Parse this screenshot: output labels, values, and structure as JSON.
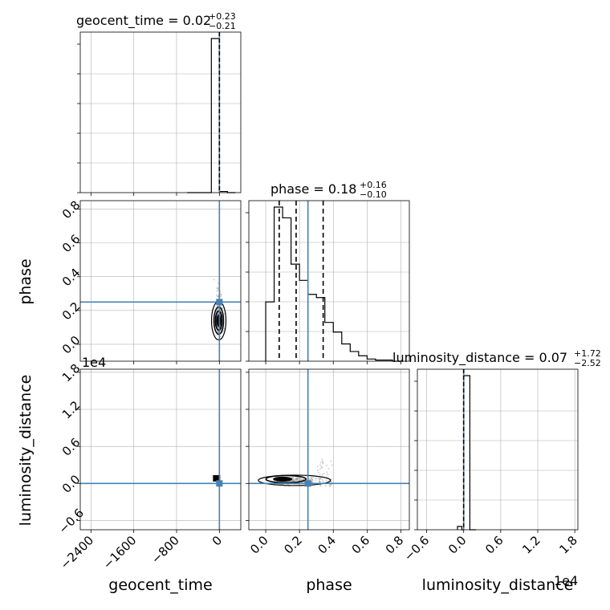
{
  "chart_data": {
    "type": "corner",
    "title": "",
    "parameters": [
      "geocent_time",
      "phase",
      "luminosity_distance"
    ],
    "panel_titles": {
      "geocent_time": {
        "prefix": "geocent_time = 0.02",
        "sup": "+0.23",
        "sub": "−0.21"
      },
      "phase": {
        "prefix": "phase = 0.18",
        "sup": "+0.16",
        "sub": "−0.10"
      },
      "luminosity_distance": {
        "prefix": "luminosity_distance = 0.07",
        "sup": "+1.72",
        "sub": "−2.52"
      }
    },
    "axis_labels": {
      "x": [
        "geocent_time",
        "phase",
        "luminosity_distance"
      ],
      "y": [
        "phase",
        "luminosity_distance"
      ]
    },
    "ticks": {
      "geocent_time": [
        -2400,
        -1600,
        -800,
        0
      ],
      "phase": [
        0.0,
        0.2,
        0.4,
        0.6,
        0.8
      ],
      "luminosity_distance": [
        -0.6,
        0.0,
        0.6,
        1.2,
        1.8
      ]
    },
    "tick_labels": {
      "geocent_time": [
        "−2400",
        "−1600",
        "−800",
        "0"
      ],
      "phase": [
        "0.0",
        "0.2",
        "0.4",
        "0.6",
        "0.8"
      ],
      "luminosity_distance": [
        "−0.6",
        "0.0",
        "0.6",
        "1.2",
        "1.8"
      ]
    },
    "offset_text": {
      "luminosity_distance": "1e4"
    },
    "ranges": {
      "geocent_time": [
        -2600,
        400
      ],
      "phase": [
        -0.1,
        0.85
      ],
      "luminosity_distance": [
        -0.75,
        1.85
      ]
    },
    "injection": {
      "geocent_time": 0,
      "phase": 0.25,
      "luminosity_distance": 0
    },
    "quantiles": {
      "phase": [
        0.08,
        0.18,
        0.34
      ]
    },
    "hist_geocent_time": {
      "edges": [
        -600,
        -450,
        -300,
        -150,
        0,
        150,
        300
      ],
      "counts": [
        0,
        0,
        0,
        2000,
        15,
        0
      ]
    },
    "hist_phase": {
      "edges": [
        0.0,
        0.05,
        0.1,
        0.15,
        0.2,
        0.25,
        0.3,
        0.35,
        0.4,
        0.45,
        0.5,
        0.55,
        0.6,
        0.65,
        0.7,
        0.75,
        0.8
      ],
      "counts": [
        55,
        143,
        133,
        90,
        75,
        62,
        59,
        36,
        27,
        16,
        9,
        5,
        2,
        1,
        1,
        0
      ]
    },
    "hist_luminosity_distance": {
      "edges": [
        -0.1,
        -0.03,
        0.0,
        0.1,
        0.2
      ],
      "counts": [
        3,
        0,
        140,
        0
      ]
    },
    "grid": true,
    "colors": {
      "injection": "#4682b4",
      "hist": "#000000",
      "grid": "#b0b0b0",
      "scatter": "#9a9a9a"
    }
  }
}
